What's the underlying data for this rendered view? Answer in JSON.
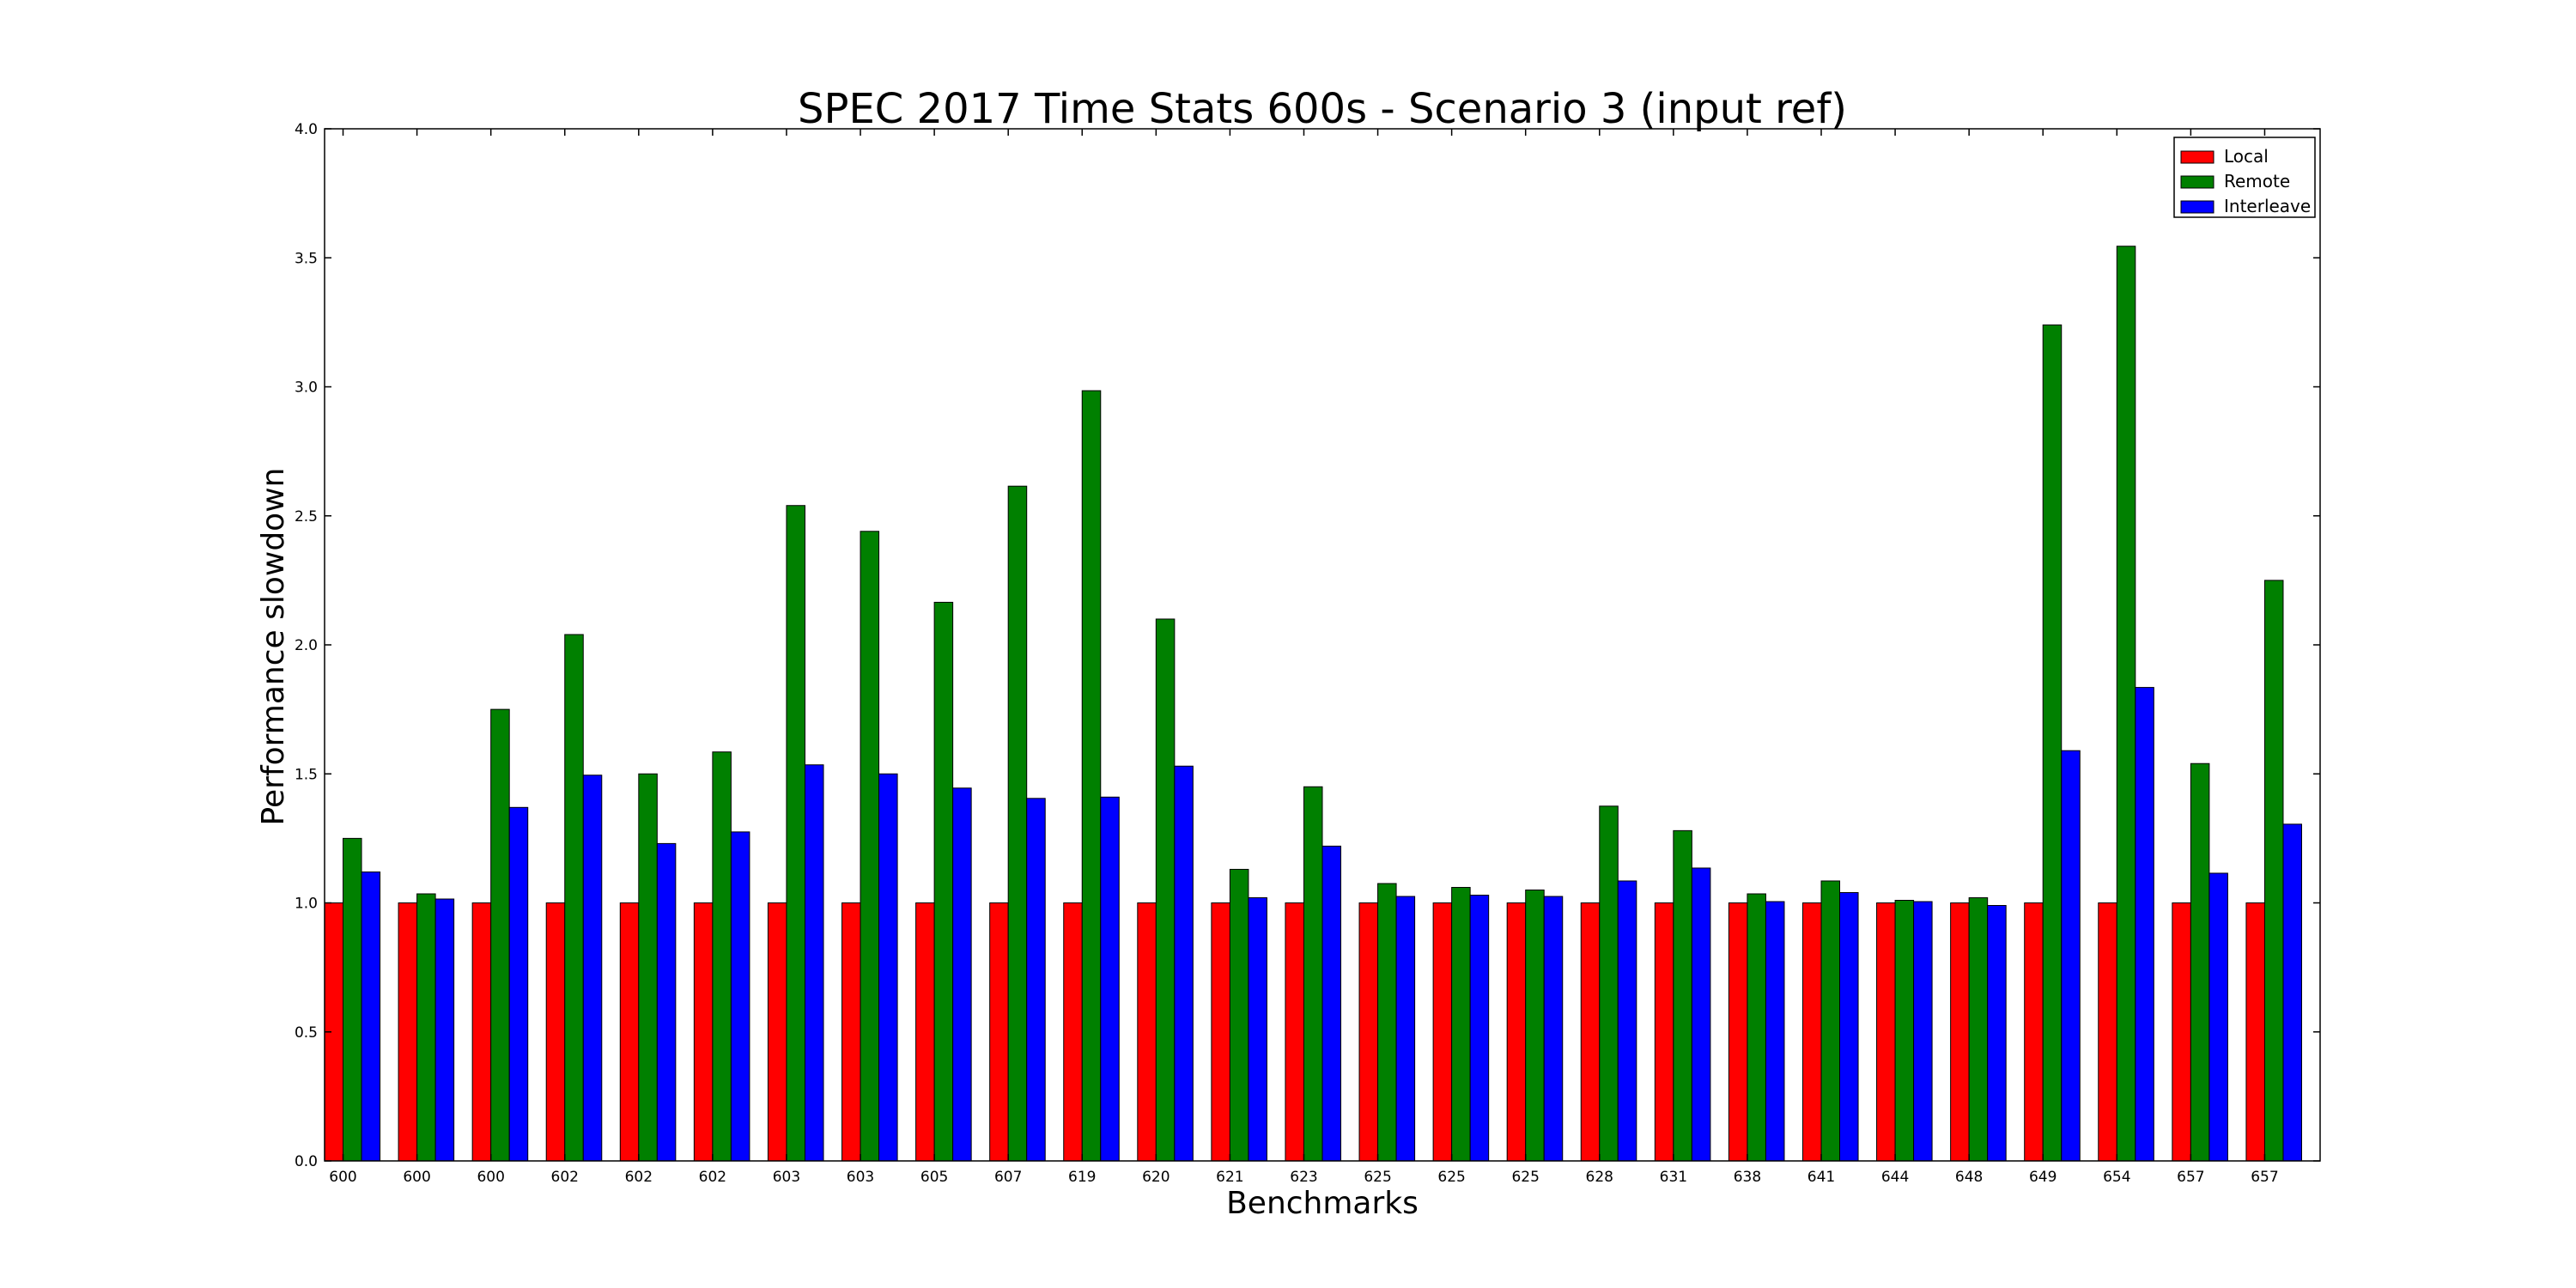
{
  "chart_data": {
    "type": "bar",
    "title": "SPEC 2017 Time Stats 600s - Scenario 3 (input ref)",
    "xlabel": "Benchmarks",
    "ylabel": "Performance slowdown",
    "ylim": [
      0,
      4.0
    ],
    "yticks": [
      "0.0",
      "0.5",
      "1.0",
      "1.5",
      "2.0",
      "2.5",
      "3.0",
      "3.5",
      "4.0"
    ],
    "grid": false,
    "legend_position": "top-right",
    "categories": [
      "600",
      "600",
      "600",
      "602",
      "602",
      "602",
      "603",
      "603",
      "605",
      "607",
      "619",
      "620",
      "621",
      "623",
      "625",
      "625",
      "625",
      "628",
      "631",
      "638",
      "641",
      "644",
      "648",
      "649",
      "654",
      "657",
      "657"
    ],
    "series": [
      {
        "name": "Local",
        "color": "#ff0000",
        "values": [
          1.0,
          1.0,
          1.0,
          1.0,
          1.0,
          1.0,
          1.0,
          1.0,
          1.0,
          1.0,
          1.0,
          1.0,
          1.0,
          1.0,
          1.0,
          1.0,
          1.0,
          1.0,
          1.0,
          1.0,
          1.0,
          1.0,
          1.0,
          1.0,
          1.0,
          1.0,
          1.0
        ]
      },
      {
        "name": "Remote",
        "color": "#008000",
        "values": [
          1.25,
          1.035,
          1.75,
          2.04,
          1.5,
          1.585,
          2.54,
          2.44,
          2.165,
          2.615,
          2.985,
          2.1,
          1.13,
          1.45,
          1.075,
          1.06,
          1.05,
          1.375,
          1.28,
          1.035,
          1.085,
          1.01,
          1.02,
          3.24,
          3.545,
          1.54,
          2.25
        ]
      },
      {
        "name": "Interleave",
        "color": "#0000ff",
        "values": [
          1.12,
          1.015,
          1.37,
          1.495,
          1.23,
          1.275,
          1.535,
          1.5,
          1.445,
          1.405,
          1.41,
          1.53,
          1.02,
          1.22,
          1.025,
          1.03,
          1.025,
          1.085,
          1.135,
          1.005,
          1.04,
          1.005,
          0.99,
          1.59,
          1.835,
          1.115,
          1.305
        ]
      }
    ]
  }
}
